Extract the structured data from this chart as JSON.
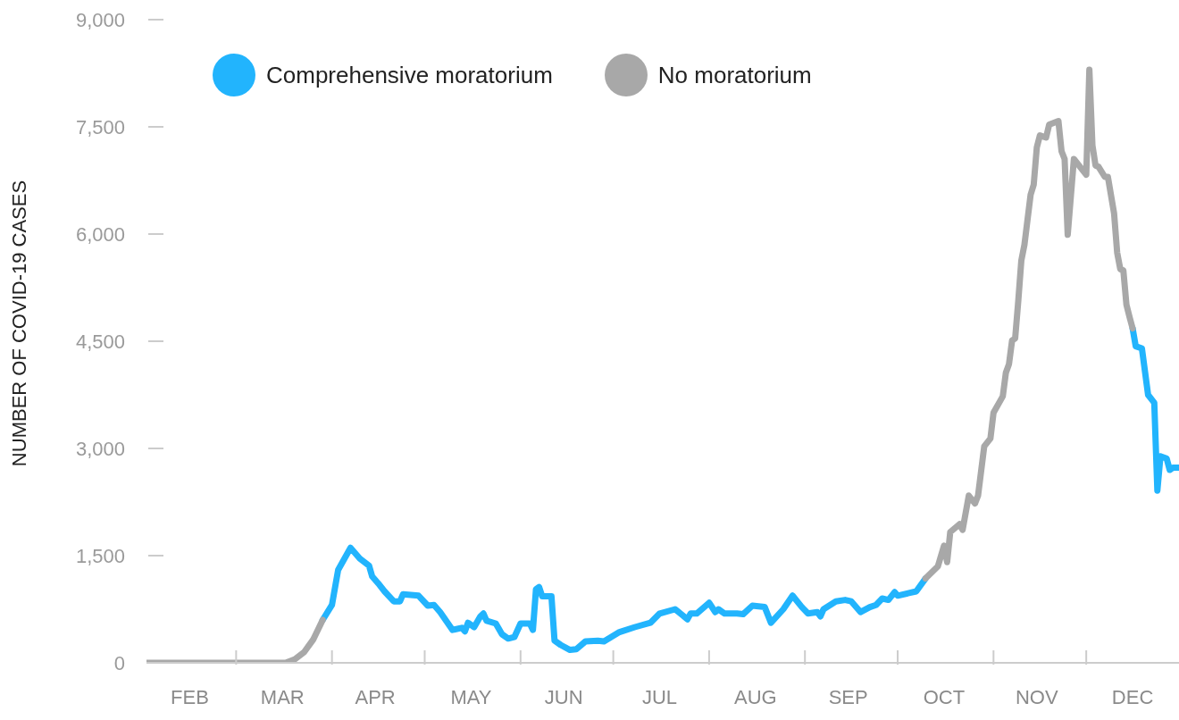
{
  "chart_data": {
    "type": "line",
    "ylabel": "NUMBER OF COVID-19 CASES",
    "legend": "top",
    "xlim": [
      "--02-01",
      "--12-31"
    ],
    "xticks": [
      {
        "value": "--02-15",
        "label": "FEB"
      },
      {
        "value": "--03-01",
        "label": null
      },
      {
        "value": "--03-16",
        "label": "MAR"
      },
      {
        "value": "--04-01",
        "label": null
      },
      {
        "value": "--04-15",
        "label": "APR"
      },
      {
        "value": "--05-01",
        "label": null
      },
      {
        "value": "--05-16",
        "label": "MAY"
      },
      {
        "value": "--06-01",
        "label": null
      },
      {
        "value": "--06-15",
        "label": "JUN"
      },
      {
        "value": "--07-01",
        "label": null
      },
      {
        "value": "--07-16",
        "label": "JUL"
      },
      {
        "value": "--08-01",
        "label": null
      },
      {
        "value": "--08-16",
        "label": "AUG"
      },
      {
        "value": "--09-01",
        "label": null
      },
      {
        "value": "--09-15",
        "label": "SEP"
      },
      {
        "value": "--10-01",
        "label": null
      },
      {
        "value": "--10-16",
        "label": "OCT"
      },
      {
        "value": "--11-01",
        "label": null
      },
      {
        "value": "--11-15",
        "label": "NOV"
      },
      {
        "value": "--12-01",
        "label": null
      },
      {
        "value": "--12-16",
        "label": "DEC"
      }
    ],
    "ylim": [
      0,
      9000
    ],
    "yticks": [
      0,
      {
        "value": 1500,
        "label": "1,500"
      },
      {
        "value": 3000,
        "label": "3,000"
      },
      {
        "value": 4500,
        "label": "4,500"
      },
      {
        "value": 6000,
        "label": "6,000"
      },
      {
        "value": 7500,
        "label": "7,500"
      },
      {
        "value": 9000,
        "label": "9,000"
      }
    ],
    "series": [
      {
        "name": "Comprehensive moratorium",
        "color": "#22b4fd",
        "x": [
          "--03-29",
          "--04-01",
          "--04-03",
          "--04-07",
          "--04-10",
          "--04-13",
          "--04-14",
          "--04-16",
          "--04-18",
          "--04-21",
          "--04-23",
          "--04-24",
          "--04-29",
          "--05-02",
          "--05-04",
          "--05-06",
          "--05-10",
          "--05-13",
          "--05-14",
          "--05-15",
          "--05-17",
          "--05-19",
          "--05-20",
          "--05-21",
          "--05-24",
          "--05-26",
          "--05-28",
          "--05-30",
          "--06-01",
          "--06-04",
          "--06-05",
          "--06-06",
          "--06-07",
          "--06-08",
          "--06-11",
          "--06-12",
          "--06-14",
          "--06-17",
          "--06-19",
          "--06-22",
          "--06-26",
          "--06-28",
          "--07-03",
          "--07-08",
          "--07-13",
          "--07-16",
          "--07-21",
          "--07-25",
          "--07-26",
          "--07-28",
          "--08-01",
          "--08-03",
          "--08-04",
          "--08-06",
          "--08-10",
          "--08-12",
          "--08-15",
          "--08-19",
          "--08-21",
          "--08-25",
          "--08-28",
          "--08-31",
          "--09-02",
          "--09-05",
          "--09-06",
          "--09-07",
          "--09-11",
          "--09-14",
          "--09-16",
          "--09-19",
          "--09-22",
          "--09-24",
          "--09-26",
          "--09-28",
          "--09-30",
          "--10-01",
          "--10-07",
          "--10-10",
          "--11-15",
          "--12-16",
          "--12-17",
          "--12-19",
          "--12-21",
          "--12-23",
          "--12-24",
          "--12-25",
          "--12-27",
          "--12-28",
          "--12-29",
          "--12-31"
        ],
        "values": [
          600,
          810,
          1300,
          1610,
          1460,
          1360,
          1210,
          1110,
          1000,
          860,
          860,
          960,
          940,
          800,
          810,
          710,
          460,
          490,
          440,
          560,
          500,
          650,
          690,
          590,
          550,
          400,
          340,
          360,
          550,
          550,
          460,
          1030,
          1060,
          930,
          930,
          310,
          250,
          180,
          190,
          300,
          310,
          300,
          430,
          500,
          560,
          690,
          750,
          610,
          690,
          690,
          840,
          710,
          750,
          690,
          690,
          680,
          800,
          780,
          560,
          750,
          940,
          780,
          690,
          710,
          650,
          750,
          860,
          880,
          860,
          710,
          780,
          810,
          900,
          880,
          990,
          940,
          1000,
          1180,
          null,
          4680,
          4430,
          4400,
          3750,
          3640,
          2410,
          2890,
          2860,
          2700,
          2730,
          2730
        ]
      },
      {
        "name": "No moratorium",
        "color": "#a8a8a8",
        "x": [
          "--02-01",
          "--03-17",
          "--03-20",
          "--03-23",
          "--03-26",
          "--03-29",
          "--06-15",
          "--10-10",
          "--10-14",
          "--10-16",
          "--10-17",
          "--10-18",
          "--10-21",
          "--10-22",
          "--10-24",
          "--10-26",
          "--10-27",
          "--10-29",
          "--10-31",
          "--11-01",
          "--11-04",
          "--11-05",
          "--11-06",
          "--11-07",
          "--11-08",
          "--11-09",
          "--11-10",
          "--11-11",
          "--11-13",
          "--11-14",
          "--11-15",
          "--11-16",
          "--11-18",
          "--11-19",
          "--11-22",
          "--11-23",
          "--11-24",
          "--11-25",
          "--11-27",
          "--12-01",
          "--12-02",
          "--12-03",
          "--12-04",
          "--12-05",
          "--12-07",
          "--12-08",
          "--12-10",
          "--12-11",
          "--12-12",
          "--12-13",
          "--12-14",
          "--12-15",
          "--12-16"
        ],
        "values": [
          0,
          0,
          50,
          150,
          330,
          600,
          null,
          1180,
          1350,
          1640,
          1410,
          1830,
          1940,
          1860,
          2340,
          2230,
          2340,
          3030,
          3140,
          3500,
          3730,
          4060,
          4180,
          4510,
          4540,
          5060,
          5630,
          5850,
          6550,
          6690,
          7210,
          7380,
          7350,
          7530,
          7580,
          7160,
          7050,
          5990,
          7050,
          6830,
          8300,
          7240,
          6960,
          6940,
          6800,
          6800,
          6290,
          5740,
          5510,
          5490,
          5010,
          4840,
          4680
        ]
      }
    ]
  }
}
